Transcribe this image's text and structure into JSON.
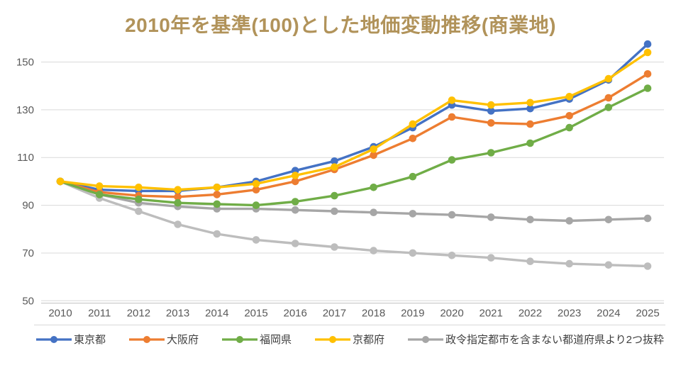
{
  "title": "2010年を基準(100)とした地価変動推移(商業地)",
  "title_color": "#B1935A",
  "chart_data": {
    "type": "line",
    "title": "2010年を基準(100)とした地価変動推移(商業地)",
    "xlabel": "",
    "ylabel": "",
    "x": [
      "2010",
      "2011",
      "2012",
      "2013",
      "2014",
      "2015",
      "2016",
      "2017",
      "2018",
      "2019",
      "2020",
      "2021",
      "2022",
      "2023",
      "2024",
      "2025"
    ],
    "yticks": [
      50,
      70,
      90,
      110,
      130,
      150
    ],
    "ylim": [
      50,
      160
    ],
    "grid": true,
    "grid_color": "#D9D9D9",
    "axis_color": "#BFBFBF",
    "tick_color": "#595959",
    "legend_position": "bottom",
    "series": [
      {
        "name": "東京都",
        "color": "#4472C4",
        "values": [
          100,
          96.5,
          96,
          96,
          97.5,
          100,
          104.5,
          108.5,
          114.5,
          122.5,
          132,
          129.5,
          130.5,
          134.5,
          142.5,
          157.5
        ]
      },
      {
        "name": "大阪府",
        "color": "#ED7D31",
        "values": [
          100,
          95.5,
          94,
          93.5,
          94.5,
          96.5,
          100,
          105,
          111,
          118,
          127,
          124.5,
          124,
          127.5,
          135,
          145
        ]
      },
      {
        "name": "福岡県",
        "color": "#70AD47",
        "values": [
          100,
          94.5,
          92.5,
          91,
          90.5,
          90,
          91.5,
          94,
          97.5,
          102,
          109,
          112,
          116,
          122.5,
          131,
          139
        ]
      },
      {
        "name": "京都府",
        "color": "#FFC000",
        "values": [
          100,
          98,
          97.5,
          96.5,
          97.5,
          99,
          102.5,
          106,
          113.5,
          124,
          134,
          132,
          133,
          135.5,
          143,
          154
        ]
      },
      {
        "name": "政令指定都市を含まない都道府県より2つ抜粋",
        "color": "#A6A6A6",
        "color_b": "#BDBDBD",
        "note": "two gray lines share this single legend entry",
        "values": [
          100,
          94.5,
          91,
          89.5,
          88.5,
          88.5,
          88,
          87.5,
          87,
          86.5,
          86,
          85,
          84,
          83.5,
          84,
          84.5
        ],
        "values_b": [
          100,
          93,
          87.5,
          82,
          78,
          75.5,
          74,
          72.5,
          71,
          70,
          69,
          68,
          66.5,
          65.5,
          65,
          64.5
        ]
      }
    ]
  }
}
